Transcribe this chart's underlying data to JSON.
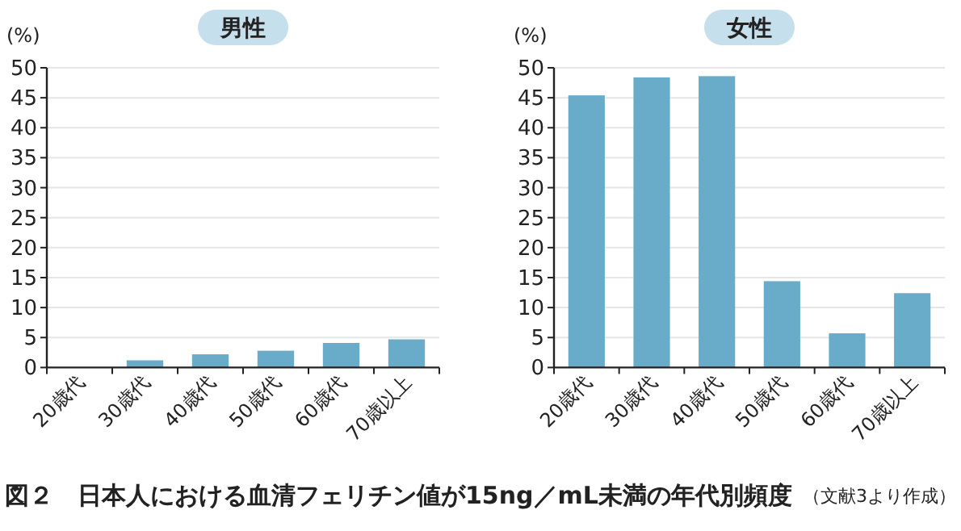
{
  "chart_data": [
    {
      "type": "bar",
      "title": "男性",
      "ylabel": "(%)",
      "categories": [
        "20歳代",
        "30歳代",
        "40歳代",
        "50歳代",
        "60歳代",
        "70歳以上"
      ],
      "values": [
        0,
        1.2,
        2.2,
        2.8,
        4.1,
        4.7
      ],
      "color": "#68acc9",
      "ylim": [
        0,
        50
      ],
      "yticks": [
        0,
        5,
        10,
        15,
        20,
        25,
        30,
        35,
        40,
        45,
        50
      ],
      "grid": "y",
      "annotations": [
        "図２　日本人における血清フェリチン値が15ng／mL未満の年代別頻度",
        "（文献3より作成）"
      ]
    },
    {
      "type": "bar",
      "title": "女性",
      "ylabel": "(%)",
      "categories": [
        "20歳代",
        "30歳代",
        "40歳代",
        "50歳代",
        "60歳代",
        "70歳以上"
      ],
      "values": [
        45.4,
        48.4,
        48.6,
        14.4,
        5.7,
        12.4
      ],
      "color": "#68acc9",
      "ylim": [
        0,
        50
      ],
      "yticks": [
        0,
        5,
        10,
        15,
        20,
        25,
        30,
        35,
        40,
        45,
        50
      ],
      "grid": "y"
    }
  ]
}
